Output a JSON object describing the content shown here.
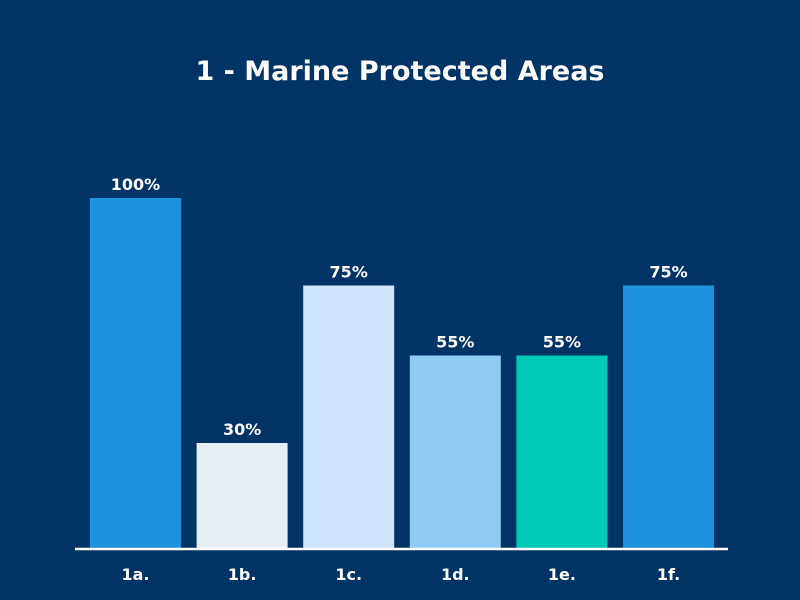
{
  "chart_data": {
    "type": "bar",
    "title": "1 - Marine Protected Areas",
    "xlabel": "",
    "ylabel": "",
    "ylim": [
      0,
      100
    ],
    "grid": false,
    "categories": [
      "1a.",
      "1b.",
      "1c.",
      "1d.",
      "1e.",
      "1f."
    ],
    "values": [
      100,
      30,
      75,
      55,
      55,
      75
    ],
    "data_labels": [
      "100%",
      "30%",
      "75%",
      "55%",
      "55%",
      "75%"
    ],
    "colors": [
      "#1E93DD",
      "#E8EEF6",
      "#CDE4FC",
      "#8DCAF4",
      "#00C9B8",
      "#1E93DD"
    ],
    "axis_color": "#FFFFFF",
    "background": "#003366"
  }
}
